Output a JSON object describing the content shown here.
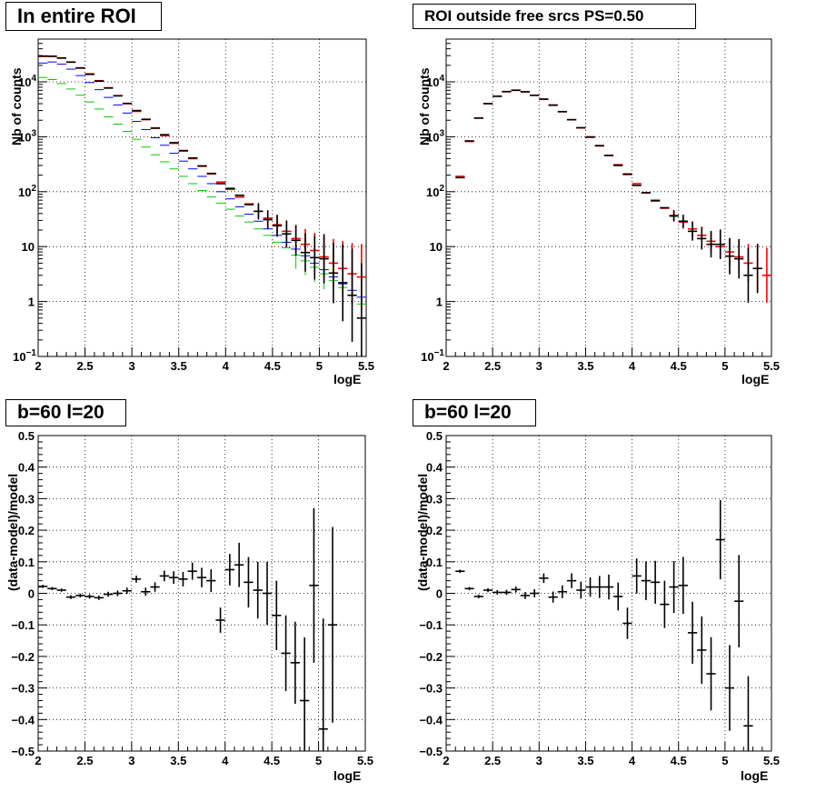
{
  "colors": {
    "data": "#000000",
    "model_total": "#ff0000",
    "model_blue": "#0000ff",
    "model_green": "#00cc00"
  },
  "chart_data": [
    {
      "id": "tl",
      "type": "scatter",
      "title": "In entire ROI",
      "xlabel": "logE",
      "ylabel": "Nb of counts",
      "xlim": [
        2,
        5.5
      ],
      "ylim": [
        0.1,
        60000
      ],
      "yscale": "log",
      "grid": true,
      "xticks": [
        "2",
        "2.5",
        "3",
        "3.5",
        "4",
        "4.5",
        "5",
        "5.5"
      ],
      "yticks": [
        {
          "value": 0.1,
          "label": "10",
          "exp": "−1"
        },
        {
          "value": 1,
          "label": "1",
          "exp": ""
        },
        {
          "value": 10,
          "label": "10",
          "exp": ""
        },
        {
          "value": 100,
          "label": "10",
          "exp": "2"
        },
        {
          "value": 1000,
          "label": "10",
          "exp": "3"
        },
        {
          "value": 10000,
          "label": "10",
          "exp": "4"
        }
      ],
      "series": [
        {
          "color": "#00cc00",
          "dx": 0.05,
          "x": [
            2.05,
            2.15,
            2.25,
            2.35,
            2.45,
            2.55,
            2.65,
            2.75,
            2.85,
            2.95,
            3.05,
            3.15,
            3.25,
            3.35,
            3.45,
            3.55,
            3.65,
            3.75,
            3.85,
            3.95,
            4.05,
            4.15,
            4.25,
            4.35,
            4.45,
            4.55,
            4.65,
            4.75,
            4.85,
            4.95,
            5.05,
            5.15,
            5.25,
            5.35,
            5.45
          ],
          "y": [
            12000,
            11000,
            9300,
            7400,
            5700,
            4300,
            3200,
            2300,
            1700,
            1250,
            900,
            650,
            470,
            350,
            260,
            190,
            140,
            105,
            80,
            62,
            48,
            36,
            28,
            21,
            16,
            12,
            9.5,
            7,
            5.5,
            4.2,
            3.2,
            2.4,
            1.8,
            1.3,
            0.9
          ],
          "err": [
            0,
            0,
            0,
            0,
            0,
            0,
            0,
            0,
            0,
            0,
            0,
            0,
            0,
            0,
            0,
            0,
            0,
            0,
            0,
            0,
            0,
            0,
            0,
            0,
            0,
            0,
            0,
            0.25,
            0.26,
            0.27,
            0.28,
            0.3,
            0.33,
            0.38,
            0.45
          ]
        },
        {
          "color": "#0000ff",
          "dx": 0.05,
          "x": [
            2.05,
            2.15,
            2.25,
            2.35,
            2.45,
            2.55,
            2.65,
            2.75,
            2.85,
            2.95,
            3.05,
            3.15,
            3.25,
            3.35,
            3.45,
            3.55,
            3.65,
            3.75,
            3.85,
            3.95,
            4.05,
            4.15,
            4.25,
            4.35,
            4.45,
            4.55,
            4.65,
            4.75,
            4.85,
            4.95,
            5.05,
            5.15,
            5.25,
            5.35,
            5.45
          ],
          "y": [
            22000,
            23000,
            21000,
            17000,
            13000,
            9700,
            7200,
            5200,
            3800,
            2700,
            1900,
            1350,
            960,
            700,
            500,
            360,
            260,
            190,
            140,
            100,
            74,
            53,
            39,
            29,
            21,
            16,
            12,
            9,
            6.8,
            5,
            3.8,
            2.8,
            2.1,
            1.6,
            1.2
          ],
          "err": [
            0,
            0,
            0,
            0,
            0,
            0,
            0,
            0,
            0,
            0,
            0,
            0,
            0,
            0,
            0,
            0,
            0,
            0,
            0,
            0,
            0,
            0,
            0,
            0,
            0,
            0,
            0,
            0,
            0,
            0,
            0,
            0,
            0,
            0,
            0
          ]
        },
        {
          "color": "#ff0000",
          "dx": 0.05,
          "x": [
            2.05,
            2.15,
            2.25,
            2.35,
            2.45,
            2.55,
            2.65,
            2.75,
            2.85,
            2.95,
            3.05,
            3.15,
            3.25,
            3.35,
            3.45,
            3.55,
            3.65,
            3.75,
            3.85,
            3.95,
            4.05,
            4.15,
            4.25,
            4.35,
            4.45,
            4.55,
            4.65,
            4.75,
            4.85,
            4.95,
            5.05,
            5.15,
            5.25,
            5.35,
            5.45
          ],
          "y": [
            29000,
            29000,
            27000,
            23000,
            18000,
            14000,
            10500,
            7800,
            5600,
            4000,
            2900,
            2050,
            1450,
            1050,
            760,
            550,
            400,
            290,
            210,
            150,
            110,
            80,
            60,
            44,
            33,
            25,
            19,
            14,
            11,
            8.5,
            6.5,
            5,
            4,
            3.2,
            2.8
          ],
          "err": [
            0,
            0,
            0,
            0,
            0,
            0,
            0,
            0,
            0,
            0,
            0,
            0,
            0,
            0,
            0,
            0,
            0,
            0,
            0,
            0,
            0,
            0,
            0,
            0.12,
            0.14,
            0.17,
            0.2,
            0.24,
            0.28,
            0.32,
            0.38,
            0.44,
            0.5,
            0.56,
            0.6
          ]
        },
        {
          "color": "#000000",
          "dx": 0.05,
          "x": [
            2.05,
            2.15,
            2.25,
            2.35,
            2.45,
            2.55,
            2.65,
            2.75,
            2.85,
            2.95,
            3.05,
            3.15,
            3.25,
            3.35,
            3.45,
            3.55,
            3.65,
            3.75,
            3.85,
            3.95,
            4.05,
            4.15,
            4.25,
            4.35,
            4.45,
            4.55,
            4.65,
            4.75,
            4.85,
            4.95,
            5.05,
            5.15,
            5.25,
            5.35,
            5.45
          ],
          "y": [
            29500,
            29300,
            27200,
            22800,
            17800,
            13700,
            10300,
            7700,
            5550,
            4050,
            3000,
            2080,
            1430,
            1090,
            780,
            560,
            410,
            295,
            215,
            140,
            115,
            86,
            58,
            44,
            31,
            24,
            17,
            13,
            7.8,
            6.3,
            6,
            3.3,
            2.2,
            1.3,
            0.5
          ],
          "err": [
            0,
            0,
            0,
            0,
            0,
            0,
            0,
            0,
            0,
            0,
            0,
            0,
            0,
            0,
            0,
            0,
            0,
            0,
            0,
            0,
            0,
            0,
            0,
            0.15,
            0.17,
            0.2,
            0.24,
            0.28,
            0.35,
            0.4,
            0.45,
            0.55,
            0.7,
            0.85,
            1.0
          ]
        }
      ]
    },
    {
      "id": "tr",
      "type": "scatter",
      "title": "ROI outside free srcs PS=0.50",
      "xlabel": "logE",
      "ylabel": "Nb of counts",
      "xlim": [
        2,
        5.5
      ],
      "ylim": [
        0.1,
        60000
      ],
      "yscale": "log",
      "grid": true,
      "xticks": [
        "2",
        "2.5",
        "3",
        "3.5",
        "4",
        "4.5",
        "5",
        "5.5"
      ],
      "yticks": [
        {
          "value": 0.1,
          "label": "10",
          "exp": "−1"
        },
        {
          "value": 1,
          "label": "1",
          "exp": ""
        },
        {
          "value": 10,
          "label": "10",
          "exp": ""
        },
        {
          "value": 100,
          "label": "10",
          "exp": "2"
        },
        {
          "value": 1000,
          "label": "10",
          "exp": "3"
        },
        {
          "value": 10000,
          "label": "10",
          "exp": "4"
        }
      ],
      "series": [
        {
          "color": "#ff0000",
          "dx": 0.05,
          "x": [
            2.15,
            2.25,
            2.35,
            2.45,
            2.55,
            2.65,
            2.75,
            2.85,
            2.95,
            3.05,
            3.15,
            3.25,
            3.35,
            3.45,
            3.55,
            3.65,
            3.75,
            3.85,
            3.95,
            4.05,
            4.15,
            4.25,
            4.35,
            4.45,
            4.55,
            4.65,
            4.75,
            4.85,
            4.95,
            5.05,
            5.15,
            5.25,
            5.35,
            5.45
          ],
          "y": [
            190,
            820,
            2200,
            4000,
            5500,
            6600,
            7000,
            6600,
            5700,
            4800,
            3800,
            2850,
            2050,
            1450,
            1000,
            680,
            460,
            310,
            205,
            140,
            95,
            70,
            50,
            37,
            28,
            21,
            16,
            12.5,
            10,
            8,
            6.5,
            5,
            4,
            3
          ],
          "err": [
            0,
            0,
            0,
            0,
            0,
            0,
            0,
            0,
            0,
            0,
            0,
            0,
            0,
            0,
            0,
            0,
            0,
            0,
            0,
            0,
            0,
            0,
            0,
            0.1,
            0.12,
            0.14,
            0.16,
            0.19,
            0.22,
            0.25,
            0.3,
            0.35,
            0.42,
            0.5
          ]
        },
        {
          "color": "#000000",
          "dx": 0.05,
          "x": [
            2.15,
            2.25,
            2.35,
            2.45,
            2.55,
            2.65,
            2.75,
            2.85,
            2.95,
            3.05,
            3.15,
            3.25,
            3.35,
            3.45,
            3.55,
            3.65,
            3.75,
            3.85,
            3.95,
            4.05,
            4.15,
            4.25,
            4.35,
            4.45,
            4.55,
            4.65,
            4.75,
            4.85,
            4.95,
            5.05,
            5.15,
            5.25,
            5.35
          ],
          "y": [
            180,
            840,
            2180,
            4020,
            5450,
            6650,
            7050,
            6580,
            5680,
            4850,
            3750,
            2870,
            2040,
            1460,
            980,
            690,
            455,
            300,
            210,
            130,
            96,
            68,
            51,
            36,
            29,
            19,
            14,
            11,
            11,
            6.7,
            6,
            3,
            4
          ],
          "err": [
            0,
            0,
            0,
            0,
            0,
            0,
            0,
            0,
            0,
            0,
            0,
            0,
            0,
            0,
            0,
            0,
            0,
            0,
            0,
            0,
            0,
            0,
            0,
            0.1,
            0.12,
            0.17,
            0.2,
            0.24,
            0.27,
            0.33,
            0.36,
            0.5,
            0.45
          ]
        }
      ]
    },
    {
      "id": "bl",
      "type": "scatter",
      "title": "b=60 l=20",
      "xlabel": "logE",
      "ylabel": "(data-model)/model",
      "xlim": [
        2,
        5.5
      ],
      "ylim": [
        -0.5,
        0.5
      ],
      "yscale": "linear",
      "grid": true,
      "xticks": [
        "2",
        "2.5",
        "3",
        "3.5",
        "4",
        "4.5",
        "5",
        "5.5"
      ],
      "yticks": [
        {
          "value": -0.5,
          "label": "−0.5"
        },
        {
          "value": -0.4,
          "label": "−0.4"
        },
        {
          "value": -0.3,
          "label": "−0.3"
        },
        {
          "value": -0.2,
          "label": "−0.2"
        },
        {
          "value": -0.1,
          "label": "−0.1"
        },
        {
          "value": 0,
          "label": "0"
        },
        {
          "value": 0.1,
          "label": "0.1"
        },
        {
          "value": 0.2,
          "label": "0.2"
        },
        {
          "value": 0.3,
          "label": "0.3"
        },
        {
          "value": 0.4,
          "label": "0.4"
        },
        {
          "value": 0.5,
          "label": "0.5"
        }
      ],
      "series": [
        {
          "color": "#000000",
          "dx": 0.05,
          "x": [
            2.05,
            2.15,
            2.25,
            2.35,
            2.45,
            2.55,
            2.65,
            2.75,
            2.85,
            2.95,
            3.05,
            3.15,
            3.25,
            3.35,
            3.45,
            3.55,
            3.65,
            3.75,
            3.85,
            3.95,
            4.05,
            4.15,
            4.25,
            4.35,
            4.45,
            4.55,
            4.65,
            4.75,
            4.85,
            4.95,
            5.05,
            5.15
          ],
          "y": [
            0.022,
            0.015,
            0.01,
            -0.012,
            -0.007,
            -0.01,
            -0.014,
            -0.003,
            0.0,
            0.008,
            0.045,
            0.005,
            0.02,
            0.055,
            0.05,
            0.045,
            0.07,
            0.05,
            0.04,
            -0.085,
            0.075,
            0.09,
            0.035,
            0.01,
            0.0,
            -0.07,
            -0.19,
            -0.22,
            -0.34,
            0.025,
            -0.43,
            -0.1
          ],
          "err": [
            0.005,
            0.005,
            0.005,
            0.006,
            0.006,
            0.007,
            0.007,
            0.008,
            0.009,
            0.01,
            0.011,
            0.013,
            0.015,
            0.017,
            0.02,
            0.023,
            0.027,
            0.031,
            0.036,
            0.04,
            0.05,
            0.07,
            0.08,
            0.09,
            0.1,
            0.11,
            0.12,
            0.13,
            0.2,
            0.245,
            0.35,
            0.31
          ]
        }
      ]
    },
    {
      "id": "br",
      "type": "scatter",
      "title": "b=60 l=20",
      "xlabel": "logE",
      "ylabel": "(data-model)/model",
      "xlim": [
        2,
        5.5
      ],
      "ylim": [
        -0.5,
        0.5
      ],
      "yscale": "linear",
      "grid": true,
      "xticks": [
        "2",
        "2.5",
        "3",
        "3.5",
        "4",
        "4.5",
        "5",
        "5.5"
      ],
      "yticks": [
        {
          "value": -0.5,
          "label": "−0.5"
        },
        {
          "value": -0.4,
          "label": "−0.4"
        },
        {
          "value": -0.3,
          "label": "−0.3"
        },
        {
          "value": -0.2,
          "label": "−0.2"
        },
        {
          "value": -0.1,
          "label": "−0.1"
        },
        {
          "value": 0,
          "label": "0"
        },
        {
          "value": 0.1,
          "label": "0.1"
        },
        {
          "value": 0.2,
          "label": "0.2"
        },
        {
          "value": 0.3,
          "label": "0.3"
        },
        {
          "value": 0.4,
          "label": "0.4"
        },
        {
          "value": 0.5,
          "label": "0.5"
        }
      ],
      "series": [
        {
          "color": "#000000",
          "dx": 0.05,
          "x": [
            2.15,
            2.25,
            2.35,
            2.45,
            2.55,
            2.65,
            2.75,
            2.85,
            2.95,
            3.05,
            3.15,
            3.25,
            3.35,
            3.45,
            3.55,
            3.65,
            3.75,
            3.85,
            3.95,
            4.05,
            4.15,
            4.25,
            4.35,
            4.45,
            4.55,
            4.65,
            4.75,
            4.85,
            4.95,
            5.05,
            5.15,
            5.25
          ],
          "y": [
            0.07,
            0.015,
            -0.01,
            0.01,
            0.003,
            0.003,
            0.012,
            -0.007,
            0.0,
            0.048,
            -0.012,
            0.005,
            0.04,
            0.01,
            0.02,
            0.02,
            0.02,
            -0.01,
            -0.095,
            0.055,
            0.04,
            0.035,
            -0.035,
            0.02,
            0.025,
            -0.125,
            -0.18,
            -0.255,
            0.17,
            -0.3,
            -0.025,
            -0.42
          ]
        }
      ]
    }
  ]
}
